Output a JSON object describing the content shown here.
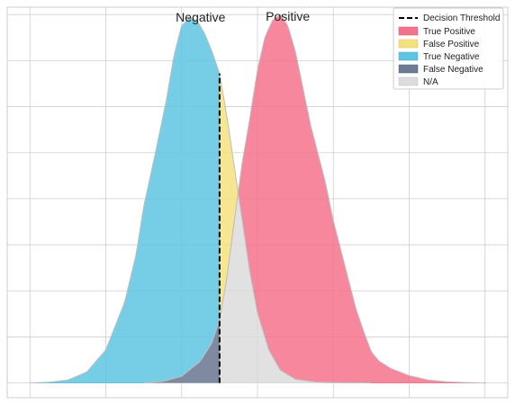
{
  "chart_data": {
    "type": "area",
    "title": "",
    "xlabel": "",
    "ylabel": "",
    "grid": true,
    "legend_placement": "top-right",
    "xlim": [
      -0.06,
      1.26
    ],
    "ylim": [
      -0.04,
      1.02
    ],
    "threshold": 0.5,
    "annotations": [
      {
        "text": "Negative",
        "x": 0.45,
        "y": 1.02
      },
      {
        "text": "Positive",
        "x": 0.68,
        "y": 1.02
      }
    ],
    "legend": [
      {
        "label": "Decision Threshold",
        "kind": "dashed-line",
        "color": "#000000"
      },
      {
        "label": "True Positive",
        "kind": "patch",
        "color": "#f4728c"
      },
      {
        "label": "False Positive",
        "kind": "patch",
        "color": "#f5e07e"
      },
      {
        "label": "True Negative",
        "kind": "patch",
        "color": "#5ec4e2"
      },
      {
        "label": "False Negative",
        "kind": "patch",
        "color": "#6d7a94"
      },
      {
        "label": "N/A",
        "kind": "patch",
        "color": "#dcdcdc"
      }
    ],
    "negative_distribution": {
      "x": [
        0.0,
        0.05,
        0.1,
        0.15,
        0.2,
        0.25,
        0.28,
        0.3,
        0.33,
        0.36,
        0.38,
        0.4,
        0.42,
        0.44,
        0.46,
        0.48,
        0.5,
        0.52,
        0.54,
        0.56,
        0.58,
        0.6,
        0.63,
        0.66,
        0.7,
        0.75,
        0.8,
        0.9
      ],
      "y": [
        0.0,
        0.002,
        0.008,
        0.03,
        0.09,
        0.22,
        0.35,
        0.48,
        0.62,
        0.77,
        0.89,
        0.97,
        0.99,
        0.985,
        0.95,
        0.9,
        0.84,
        0.72,
        0.58,
        0.44,
        0.3,
        0.19,
        0.09,
        0.035,
        0.01,
        0.003,
        0.001,
        0.0
      ]
    },
    "positive_distribution": {
      "x": [
        0.3,
        0.35,
        0.4,
        0.45,
        0.48,
        0.5,
        0.52,
        0.54,
        0.56,
        0.58,
        0.6,
        0.62,
        0.64,
        0.66,
        0.68,
        0.7,
        0.72,
        0.74,
        0.76,
        0.78,
        0.8,
        0.82,
        0.84,
        0.86,
        0.88,
        0.9,
        0.92,
        0.95,
        1.0,
        1.05,
        1.1,
        1.15,
        1.2
      ],
      "y": [
        0.0,
        0.004,
        0.018,
        0.06,
        0.11,
        0.17,
        0.29,
        0.45,
        0.6,
        0.72,
        0.85,
        0.94,
        0.985,
        1.0,
        0.97,
        0.9,
        0.8,
        0.7,
        0.62,
        0.54,
        0.44,
        0.36,
        0.28,
        0.2,
        0.14,
        0.085,
        0.06,
        0.04,
        0.02,
        0.008,
        0.003,
        0.001,
        0.0
      ]
    }
  },
  "colors": {
    "true_positive": "#f4728c",
    "false_positive": "#f5e07e",
    "true_negative": "#5ec4e2",
    "false_negative": "#6d7a94",
    "na": "#dcdcdc",
    "grid": "#cfcfcf",
    "axis": "#cccccc"
  }
}
